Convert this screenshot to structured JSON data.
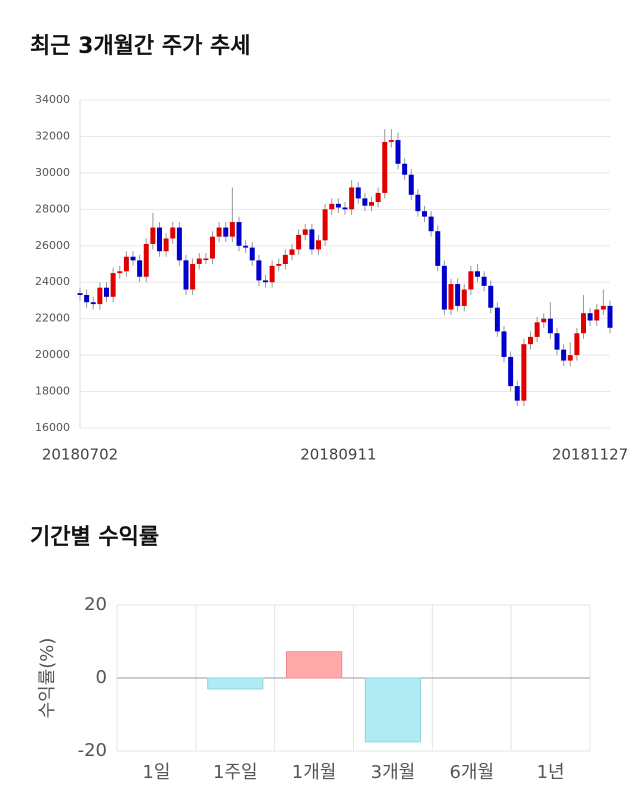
{
  "chart_data": [
    {
      "type": "candlestick",
      "title": "최근 3개월간 주가 추세",
      "categories": [
        "20180702",
        null,
        null,
        null,
        null,
        null,
        null,
        null,
        null,
        null,
        null,
        null,
        null,
        null,
        null,
        null,
        null,
        null,
        null,
        null,
        null,
        null,
        null,
        null,
        null,
        null,
        null,
        null,
        null,
        null,
        null,
        null,
        null,
        null,
        null,
        null,
        null,
        null,
        null,
        "20180911",
        null,
        null,
        null,
        null,
        null,
        null,
        null,
        null,
        null,
        null,
        null,
        null,
        null,
        null,
        null,
        null,
        null,
        null,
        null,
        null,
        null,
        null,
        null,
        null,
        null,
        null,
        null,
        null,
        null,
        null,
        null,
        null,
        null,
        null,
        null,
        null,
        null,
        null,
        null,
        null,
        "20181127"
      ],
      "open": [
        23400,
        23300,
        22900,
        22800,
        23700,
        23200,
        24500,
        24600,
        25400,
        25200,
        24300,
        26100,
        27000,
        25700,
        26400,
        27000,
        25200,
        23600,
        25000,
        25300,
        25300,
        26500,
        27000,
        26500,
        27300,
        26000,
        25900,
        25200,
        24100,
        24000,
        24900,
        25000,
        25500,
        25800,
        26600,
        26900,
        25800,
        26300,
        28000,
        28300,
        28100,
        28000,
        29200,
        28600,
        28200,
        28400,
        28900,
        31700,
        31800,
        30500,
        29900,
        28800,
        27900,
        27600,
        26800,
        24900,
        22500,
        23900,
        22700,
        23600,
        24600,
        24300,
        23800,
        22600,
        21300,
        19900,
        18300,
        17500,
        20600,
        21000,
        21800,
        22000,
        21200,
        20300,
        19700,
        20000,
        21200,
        22300,
        21900,
        22500,
        22700
      ],
      "high": [
        23700,
        23600,
        23200,
        24000,
        24000,
        24800,
        24900,
        25700,
        25700,
        25500,
        26400,
        27800,
        27300,
        26700,
        27300,
        27300,
        25500,
        25300,
        25600,
        25600,
        26800,
        27300,
        27300,
        29200,
        27600,
        26300,
        26200,
        25500,
        24400,
        25200,
        25300,
        25800,
        26100,
        26900,
        27200,
        27200,
        26600,
        28300,
        28600,
        28600,
        28400,
        29600,
        29500,
        28900,
        28700,
        29200,
        32400,
        32400,
        32200,
        30800,
        30200,
        29100,
        28200,
        27900,
        27100,
        25200,
        24200,
        24200,
        23900,
        24900,
        25000,
        24600,
        24100,
        22900,
        21600,
        20200,
        18600,
        20900,
        21300,
        22100,
        22300,
        22900,
        21500,
        20600,
        20700,
        21500,
        23300,
        22600,
        22800,
        23600,
        23000
      ],
      "low": [
        23000,
        22600,
        22500,
        22500,
        22900,
        22900,
        24200,
        24300,
        24900,
        24000,
        24000,
        25800,
        25400,
        25400,
        26100,
        24900,
        23300,
        23300,
        24700,
        25000,
        25000,
        26200,
        26200,
        26200,
        25700,
        25600,
        24900,
        23800,
        23700,
        23700,
        24600,
        24700,
        25200,
        25500,
        26300,
        25500,
        25500,
        26000,
        27700,
        27800,
        27700,
        27700,
        28300,
        27900,
        27900,
        28100,
        28600,
        31400,
        30200,
        29600,
        28500,
        27600,
        27300,
        26500,
        24600,
        22200,
        22200,
        22400,
        22400,
        23300,
        24000,
        23500,
        22300,
        21000,
        19600,
        18000,
        17200,
        17200,
        20300,
        20700,
        21500,
        20900,
        20000,
        19400,
        19400,
        19700,
        20900,
        21600,
        21600,
        22200,
        21200
      ],
      "close": [
        23300,
        22900,
        22800,
        23700,
        23200,
        24500,
        24600,
        25400,
        25200,
        24300,
        26100,
        27000,
        25700,
        26400,
        27000,
        25200,
        23600,
        25000,
        25300,
        25300,
        26500,
        27000,
        26500,
        27300,
        26000,
        25900,
        25200,
        24100,
        24000,
        24900,
        25000,
        25500,
        25800,
        26600,
        26900,
        25800,
        26300,
        28000,
        28300,
        28100,
        28000,
        29200,
        28600,
        28200,
        28400,
        28900,
        31700,
        31800,
        30500,
        29900,
        28800,
        27900,
        27600,
        26800,
        24900,
        22500,
        23900,
        22700,
        23600,
        24600,
        24300,
        23800,
        22600,
        21300,
        19900,
        18300,
        17500,
        20600,
        21000,
        21800,
        22000,
        21200,
        20300,
        19700,
        20000,
        21200,
        22300,
        21900,
        22500,
        22700,
        21500
      ],
      "up_color": "#e00000",
      "down_color": "#0000cc",
      "ylim": [
        16000,
        34000
      ],
      "yticks": [
        16000,
        18000,
        20000,
        22000,
        24000,
        26000,
        28000,
        30000,
        32000,
        34000
      ],
      "grid": true
    },
    {
      "type": "bar",
      "title": "기간별 수익률",
      "y_label": "수익률(%)",
      "categories": [
        "1일",
        "1주일",
        "1개월",
        "3개월",
        "6개월",
        "1년"
      ],
      "values": [
        null,
        -3,
        7.2,
        -17.5,
        null,
        null
      ],
      "positive_color": "#ffa9a9",
      "negative_color": "#b0ebf3",
      "ylim": [
        -20,
        20
      ],
      "yticks": [
        -20,
        0,
        20
      ],
      "grid": true
    }
  ]
}
